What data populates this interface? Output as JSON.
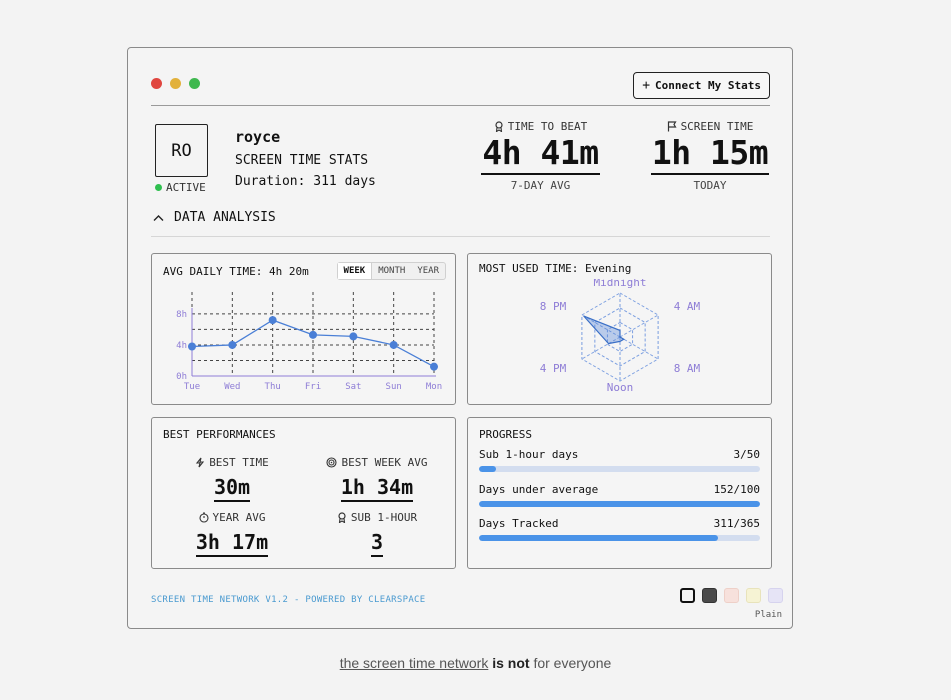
{
  "window": {
    "dots": [
      "#e0463f",
      "#e2b13b",
      "#3fb84f"
    ],
    "connect_label": "Connect My Stats"
  },
  "profile": {
    "initials": "RO",
    "status": "ACTIVE",
    "name": "royce",
    "subtitle": "SCREEN TIME STATS",
    "duration": "Duration: 311 days"
  },
  "metrics": {
    "time_to_beat": {
      "label": "TIME TO BEAT",
      "value": "4h 41m",
      "sub": "7-DAY AVG"
    },
    "screen_time": {
      "label": "SCREEN TIME",
      "value": "1h 15m",
      "sub": "TODAY"
    }
  },
  "section": {
    "title": "DATA ANALYSIS"
  },
  "avg_panel": {
    "title": "AVG DAILY TIME:",
    "value": "4h 20m",
    "tabs": [
      "WEEK",
      "MONTH",
      "YEAR"
    ],
    "active_tab": "WEEK"
  },
  "most_used": {
    "title": "MOST USED TIME:",
    "value": "Evening"
  },
  "chart_data": [
    {
      "type": "line",
      "title": "AVG DAILY TIME: 4h 20m",
      "categories": [
        "Tue",
        "Wed",
        "Thu",
        "Fri",
        "Sat",
        "Sun",
        "Mon"
      ],
      "values": [
        3.8,
        4.0,
        7.2,
        5.3,
        5.1,
        4.0,
        1.2
      ],
      "yticks": [
        "0h",
        "4h",
        "8h"
      ],
      "ylim": [
        0,
        8.5
      ],
      "grid": true,
      "color": "#4a7fd6"
    },
    {
      "type": "radar",
      "title": "MOST USED TIME: Evening",
      "axes": [
        "Midnight",
        "4 AM",
        "8 AM",
        "Noon",
        "4 PM",
        "8 PM"
      ],
      "values": [
        0.15,
        0.0,
        0.1,
        0.1,
        0.3,
        0.95
      ],
      "color": "#4a7fd6",
      "label_color": "#8e7dd6"
    }
  ],
  "best": {
    "title": "BEST PERFORMANCES",
    "items": [
      {
        "label": "BEST TIME",
        "value": "30m",
        "icon": "bolt-icon"
      },
      {
        "label": "BEST WEEK AVG",
        "value": "1h 34m",
        "icon": "target-icon"
      },
      {
        "label": "YEAR AVG",
        "value": "3h 17m",
        "icon": "stopwatch-icon"
      },
      {
        "label": "SUB 1-HOUR",
        "value": "3",
        "icon": "award-icon"
      }
    ]
  },
  "progress": {
    "title": "PROGRESS",
    "rows": [
      {
        "label": "Sub 1-hour days",
        "count": "3/50",
        "fraction": 0.06
      },
      {
        "label": "Days under average",
        "count": "152/100",
        "fraction": 1.0
      },
      {
        "label": "Days Tracked",
        "count": "311/365",
        "fraction": 0.852
      }
    ]
  },
  "footer": {
    "text": "SCREEN TIME NETWORK V1.2 - POWERED BY CLEARSPACE",
    "theme_label": "Plain",
    "themes": [
      "#f4f4f4",
      "#4a4a4a",
      "#f7e1dc",
      "#f6f3d4",
      "#e6e4f6"
    ]
  },
  "tagline": {
    "link": "the screen time network",
    "bold": "is not",
    "rest": "for everyone"
  }
}
